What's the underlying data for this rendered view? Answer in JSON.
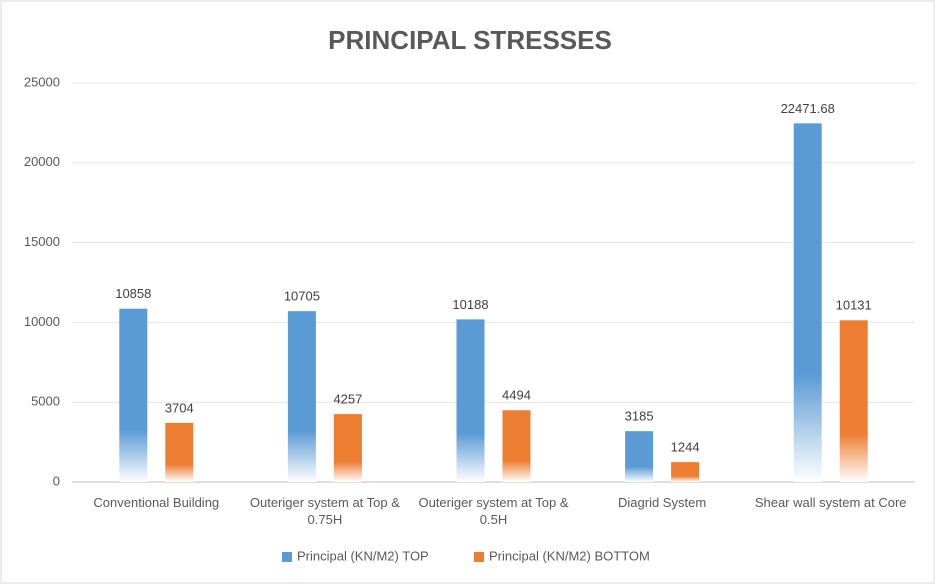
{
  "chart_data": {
    "type": "bar",
    "title": "PRINCIPAL STRESSES",
    "categories": [
      "Conventional Building",
      "Outeriger system at Top & 0.75H",
      "Outeriger system at Top & 0.5H",
      "Diagrid System",
      "Shear wall system at Core"
    ],
    "series": [
      {
        "name": "Principal (KN/M2) TOP",
        "color": "#5b9bd5",
        "values": [
          10858,
          10705,
          10188,
          3185,
          22471.68
        ]
      },
      {
        "name": "Principal (KN/M2) BOTTOM",
        "color": "#ed7d31",
        "values": [
          3704,
          4257,
          4494,
          1244,
          10131
        ]
      }
    ],
    "ylim": [
      0,
      25000
    ],
    "yticks": [
      0,
      5000,
      10000,
      15000,
      20000,
      25000
    ],
    "grid": true,
    "legend": "bottom"
  }
}
